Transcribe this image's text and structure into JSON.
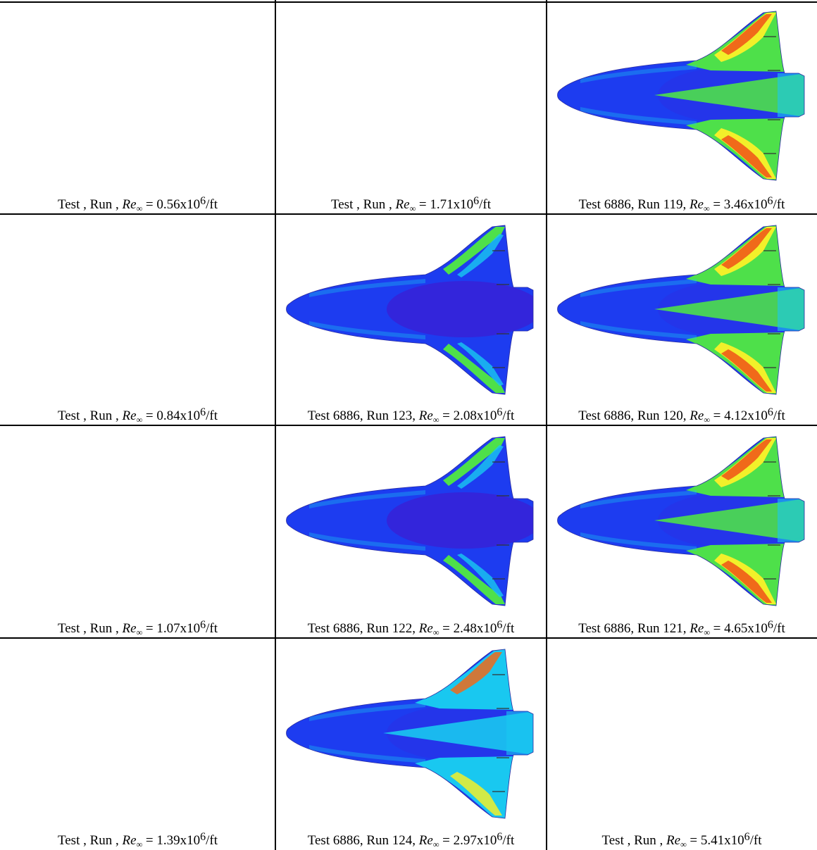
{
  "figure": {
    "rows": 4,
    "cols": 3,
    "cells": [
      {
        "test": "",
        "run": "",
        "re": "0.56",
        "has_image": false
      },
      {
        "test": "",
        "run": "",
        "re": "1.71",
        "has_image": false
      },
      {
        "test": "6886",
        "run": "119",
        "re": "3.46",
        "has_image": true,
        "pattern": "turbulent"
      },
      {
        "test": "",
        "run": "",
        "re": "0.84",
        "has_image": false
      },
      {
        "test": "6886",
        "run": "123",
        "re": "2.08",
        "has_image": true,
        "pattern": "laminar"
      },
      {
        "test": "6886",
        "run": "120",
        "re": "4.12",
        "has_image": true,
        "pattern": "turbulent"
      },
      {
        "test": "",
        "run": "",
        "re": "1.07",
        "has_image": false
      },
      {
        "test": "6886",
        "run": "122",
        "re": "2.48",
        "has_image": true,
        "pattern": "laminar"
      },
      {
        "test": "6886",
        "run": "121",
        "re": "4.65",
        "has_image": true,
        "pattern": "turbulent"
      },
      {
        "test": "",
        "run": "",
        "re": "1.39",
        "has_image": false
      },
      {
        "test": "6886",
        "run": "124",
        "re": "2.97",
        "has_image": true,
        "pattern": "transitional"
      },
      {
        "test": "",
        "run": "",
        "re": "5.41",
        "has_image": false
      }
    ],
    "caption_parts": {
      "test_word": "Test",
      "run_word": "Run",
      "re_symbol": "Re",
      "re_subscript": "∞",
      "multiplier": "x10",
      "exponent": "6",
      "unit": "/ft"
    },
    "colors": {
      "laminar": "#1d3cf0",
      "laminar_deep": "#3a1fd6",
      "transitional": "#19c8f0",
      "turbulent_core": "#4ee04a",
      "turbulent_high": "#f2f02a",
      "turbulent_peak": "#f06a1a",
      "stagnation": "#8a24c8"
    }
  }
}
